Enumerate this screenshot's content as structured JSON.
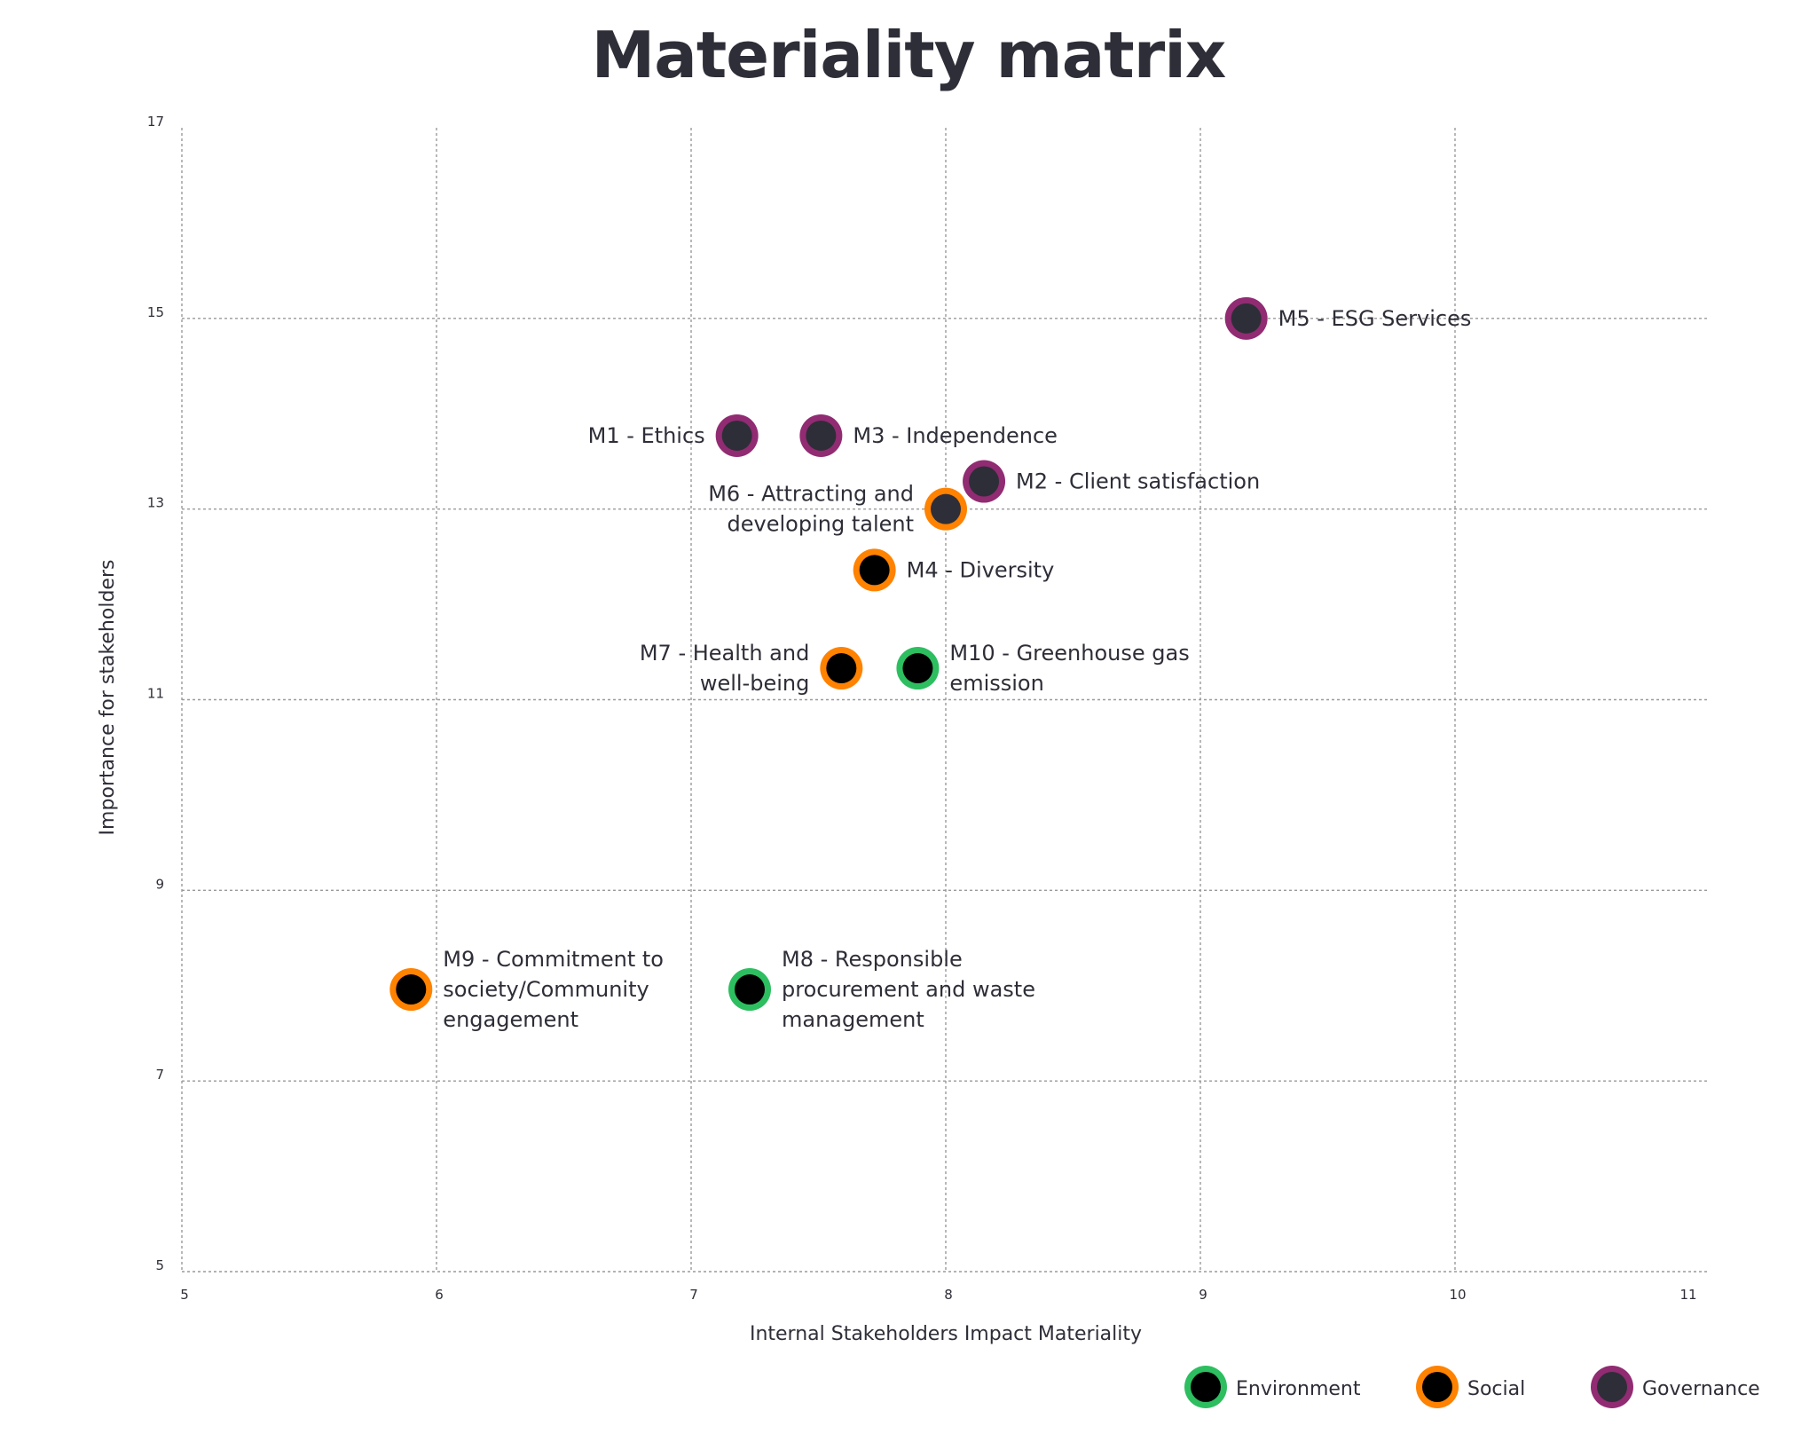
{
  "chart_data": {
    "type": "scatter",
    "title": "Materiality matrix",
    "xlabel": "Internal Stakeholders Impact Materiality",
    "ylabel": "Importance for stakeholders",
    "xlim": [
      5,
      11
    ],
    "ylim": [
      5,
      17
    ],
    "xticks": [
      5,
      6,
      7,
      8,
      9,
      10,
      11
    ],
    "yticks": [
      5,
      7,
      9,
      11,
      13,
      15,
      17
    ],
    "grid": true,
    "legend_position": "bottom-right",
    "categories": [
      {
        "key": "environment",
        "name": "Environment",
        "ring_color": "#2dbe60",
        "fill_color": "#000000"
      },
      {
        "key": "social",
        "name": "Social",
        "ring_color": "#ff8200",
        "fill_color": "#000000"
      },
      {
        "key": "governance",
        "name": "Governance",
        "ring_color": "#912b72",
        "fill_color": "#2e2e38"
      }
    ],
    "points": [
      {
        "id": "M1",
        "label": [
          "M1 - Ethics"
        ],
        "x": 7.18,
        "y": 13.77,
        "category": "governance",
        "fill_color": "#2e2e38",
        "label_side": "left"
      },
      {
        "id": "M2",
        "label": [
          "M2 - Client satisfaction"
        ],
        "x": 8.15,
        "y": 13.29,
        "category": "governance",
        "fill_color": "#2e2e38",
        "label_side": "right"
      },
      {
        "id": "M3",
        "label": [
          "M3 - Independence"
        ],
        "x": 7.51,
        "y": 13.77,
        "category": "governance",
        "fill_color": "#2e2e38",
        "label_side": "right"
      },
      {
        "id": "M4",
        "label": [
          "M4 - Diversity"
        ],
        "x": 7.72,
        "y": 12.36,
        "category": "social",
        "fill_color": "#000000",
        "label_side": "right"
      },
      {
        "id": "M5",
        "label": [
          "M5 - ESG Services"
        ],
        "x": 9.18,
        "y": 15.0,
        "category": "governance",
        "fill_color": "#2e2e38",
        "label_side": "right"
      },
      {
        "id": "M6",
        "label": [
          "M6 - Attracting and",
          "developing talent"
        ],
        "x": 8.0,
        "y": 13.0,
        "category": "social",
        "fill_color": "#2e2e38",
        "label_side": "left"
      },
      {
        "id": "M7",
        "label": [
          "M7 - Health and",
          "well-being"
        ],
        "x": 7.59,
        "y": 11.33,
        "category": "social",
        "fill_color": "#000000",
        "label_side": "left"
      },
      {
        "id": "M8",
        "label": [
          "M8 - Responsible",
          "procurement and waste",
          "management"
        ],
        "x": 7.23,
        "y": 7.96,
        "category": "environment",
        "fill_color": "#000000",
        "label_side": "right"
      },
      {
        "id": "M9",
        "label": [
          "M9 - Commitment to",
          "society/Community",
          "engagement"
        ],
        "x": 5.9,
        "y": 7.96,
        "category": "social",
        "fill_color": "#000000",
        "label_side": "right"
      },
      {
        "id": "M10",
        "label": [
          "M10 - Greenhouse gas",
          "emission"
        ],
        "x": 7.89,
        "y": 11.33,
        "category": "environment",
        "fill_color": "#000000",
        "label_side": "right"
      }
    ]
  }
}
